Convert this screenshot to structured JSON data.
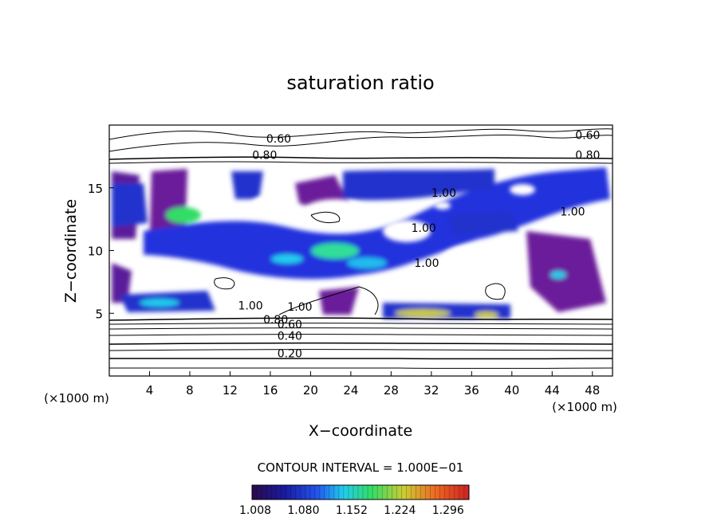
{
  "chart_data": {
    "type": "heatmap",
    "title": "saturation ratio",
    "xlabel": "X−coordinate",
    "ylabel": "Z−coordinate",
    "x_units_left": "(×1000 m)",
    "x_units_right": "(×1000 m)",
    "xlim": [
      0,
      50
    ],
    "ylim": [
      0,
      20
    ],
    "x_ticks": [
      4,
      8,
      12,
      16,
      20,
      24,
      28,
      32,
      36,
      40,
      44,
      48
    ],
    "y_ticks": [
      5,
      10,
      15
    ],
    "contour_interval_text": "CONTOUR INTERVAL = 1.000E−01",
    "colorbar": {
      "labels": [
        "1.008",
        "1.080",
        "1.152",
        "1.224",
        "1.296"
      ],
      "colors": [
        "#2a0a4a",
        "#1a1aa0",
        "#2255ee",
        "#22ccee",
        "#33dd66",
        "#cccc33",
        "#ee6622",
        "#cc2222"
      ]
    },
    "contour_labels": [
      {
        "text": "0.60",
        "x": 15.6,
        "z": 18.6
      },
      {
        "text": "0.80",
        "x": 14.2,
        "z": 17.3
      },
      {
        "text": "0.60",
        "x": 46.3,
        "z": 18.9
      },
      {
        "text": "0.80",
        "x": 46.3,
        "z": 17.3
      },
      {
        "text": "1.00",
        "x": 32.0,
        "z": 14.3
      },
      {
        "text": "1.00",
        "x": 44.8,
        "z": 12.8
      },
      {
        "text": "1.00",
        "x": 30.0,
        "z": 11.5
      },
      {
        "text": "1.00",
        "x": 30.3,
        "z": 8.7
      },
      {
        "text": "1.00",
        "x": 12.8,
        "z": 5.3
      },
      {
        "text": "1.00",
        "x": 17.7,
        "z": 5.2
      },
      {
        "text": "0.80",
        "x": 15.3,
        "z": 4.2
      },
      {
        "text": "0.60",
        "x": 16.7,
        "z": 3.8
      },
      {
        "text": "0.40",
        "x": 16.7,
        "z": 2.9
      },
      {
        "text": "0.20",
        "x": 16.7,
        "z": 1.5
      }
    ]
  }
}
